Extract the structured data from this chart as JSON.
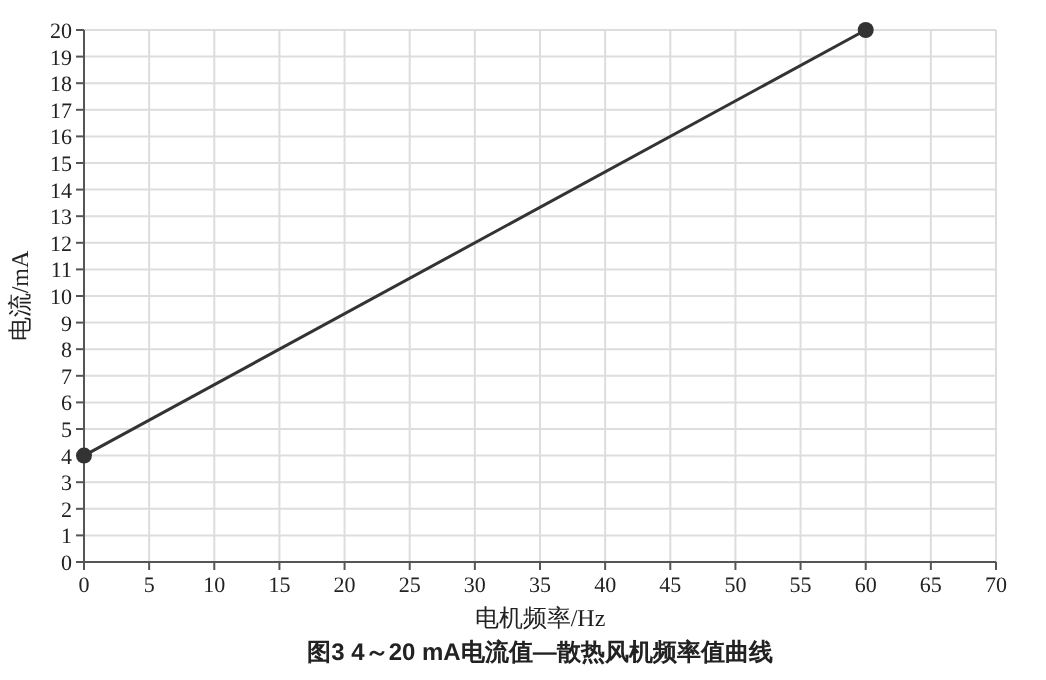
{
  "chart_data": {
    "type": "line",
    "title": "图3  4～20 mA电流值—散热风机频率值曲线",
    "xlabel": "电机频率/Hz",
    "ylabel": "电流/mA",
    "x": [
      0,
      60
    ],
    "series": [
      {
        "color": "#333333",
        "values": [
          4,
          20
        ]
      }
    ],
    "xlim": [
      0,
      70
    ],
    "xticks": [
      0,
      5,
      10,
      15,
      20,
      25,
      30,
      35,
      40,
      45,
      50,
      55,
      60,
      65,
      70
    ],
    "ylim": [
      0,
      20
    ],
    "yticks": [
      0,
      1,
      2,
      3,
      4,
      5,
      6,
      7,
      8,
      9,
      10,
      11,
      12,
      13,
      14,
      15,
      16,
      17,
      18,
      19,
      20
    ],
    "grid": true,
    "marker": "circle",
    "line_style": "solid"
  }
}
